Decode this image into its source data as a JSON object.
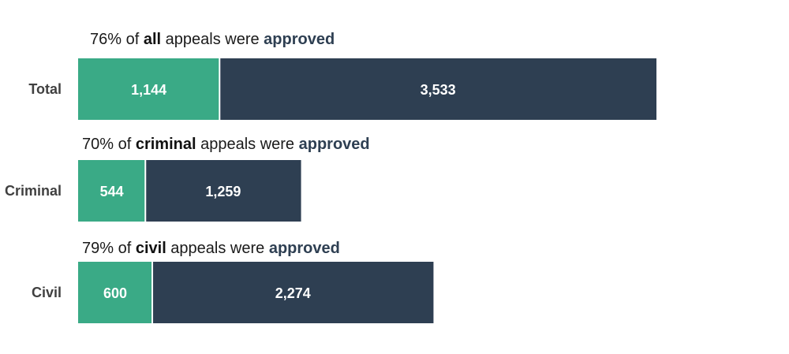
{
  "chart_data": {
    "type": "bar",
    "orientation": "horizontal",
    "stacked": true,
    "categories": [
      "Total",
      "Criminal",
      "Civil"
    ],
    "series": [
      {
        "values": [
          1144,
          544,
          600
        ],
        "color": "#3aaa86"
      },
      {
        "values": [
          3533,
          1259,
          2274
        ],
        "color": "#2e3f52"
      }
    ],
    "value_labels": [
      [
        "1,144",
        "3,533"
      ],
      [
        "544",
        "1,259"
      ],
      [
        "600",
        "2,274"
      ]
    ],
    "annotations": [
      {
        "prefix": "76% of ",
        "keyword": "all",
        "middle": " appeals were ",
        "emphasis": "approved"
      },
      {
        "prefix": "70% of ",
        "keyword": "criminal",
        "middle": " appeals were ",
        "emphasis": "approved"
      },
      {
        "prefix": "79% of ",
        "keyword": "civil",
        "middle": " appeals were ",
        "emphasis": "approved"
      }
    ],
    "title": "",
    "xlabel": "",
    "ylabel": "",
    "grid": false,
    "legend": "none"
  }
}
